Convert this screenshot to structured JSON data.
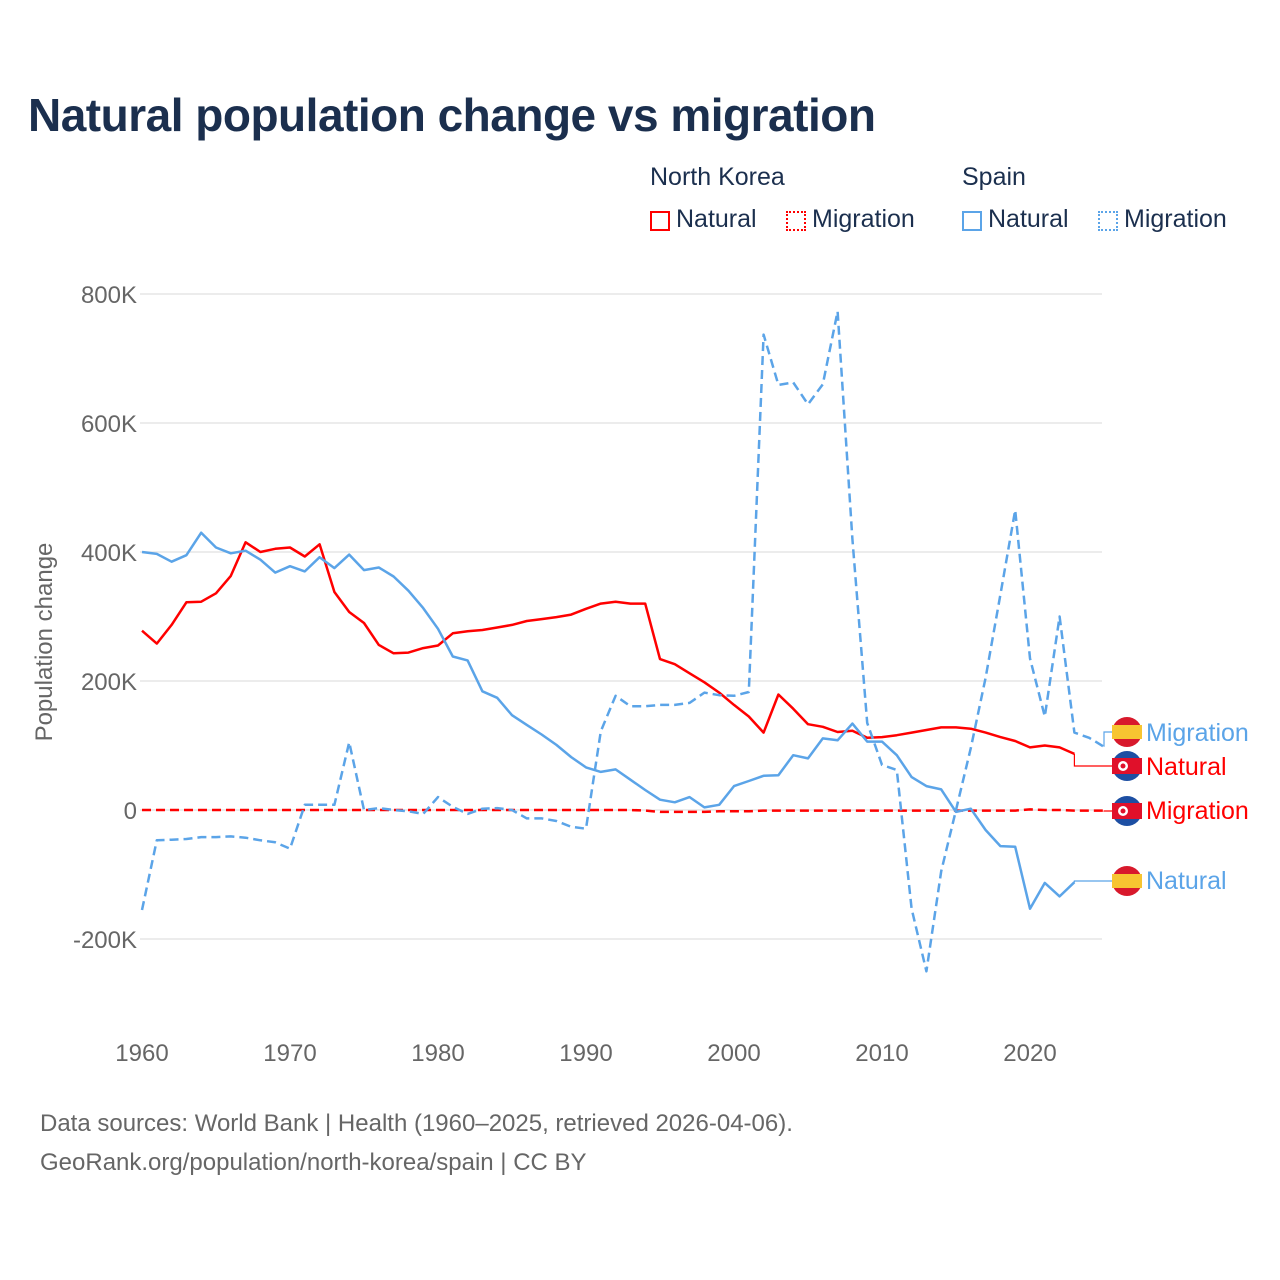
{
  "chart_data": {
    "type": "line",
    "title": "Natural population change vs migration",
    "ylabel": "Population change",
    "xlabel": "",
    "ylim": [
      -250000,
      800000
    ],
    "xlim": [
      1960,
      2025
    ],
    "yticks": [
      {
        "v": 800000,
        "label": "800K"
      },
      {
        "v": 600000,
        "label": "600K"
      },
      {
        "v": 400000,
        "label": "400K"
      },
      {
        "v": 200000,
        "label": "200K"
      },
      {
        "v": 0,
        "label": "0"
      },
      {
        "v": -200000,
        "label": "-200K"
      }
    ],
    "xticks": [
      {
        "v": 1960,
        "label": "1960"
      },
      {
        "v": 1970,
        "label": "1970"
      },
      {
        "v": 1980,
        "label": "1980"
      },
      {
        "v": 1990,
        "label": "1990"
      },
      {
        "v": 2000,
        "label": "2000"
      },
      {
        "v": 2010,
        "label": "2010"
      },
      {
        "v": 2020,
        "label": "2020"
      }
    ],
    "grid": true,
    "legend": {
      "position": "top-right",
      "groups": [
        {
          "title": "North Korea",
          "items": [
            "Natural",
            "Migration"
          ]
        },
        {
          "title": "Spain",
          "items": [
            "Natural",
            "Migration"
          ]
        }
      ]
    },
    "series": [
      {
        "name": "North Korea Natural",
        "label": "Natural",
        "country": "North Korea",
        "color": "#ff0000",
        "dash": false,
        "start": 1960,
        "values": [
          278,
          258,
          287,
          322,
          323,
          336,
          363,
          415,
          400,
          405,
          407,
          393,
          412,
          338,
          307,
          290,
          256,
          243,
          244,
          251,
          255,
          274,
          277,
          279,
          283,
          287,
          293,
          296,
          299,
          303,
          312,
          320,
          323,
          320,
          320,
          234,
          226,
          212,
          198,
          182,
          163,
          145,
          120,
          179,
          157,
          133,
          129,
          121,
          123,
          112,
          113,
          116,
          120,
          124,
          128,
          128,
          126,
          120,
          113,
          107,
          97,
          100,
          97,
          87
        ]
      },
      {
        "name": "North Korea Migration",
        "label": "Migration",
        "country": "North Korea",
        "color": "#ff0000",
        "dash": true,
        "start": 1960,
        "values": [
          0,
          0,
          0,
          0,
          0,
          0,
          0,
          0,
          0,
          0,
          0,
          0,
          0,
          0,
          0,
          0,
          0,
          0,
          0,
          0,
          0,
          0,
          0,
          0,
          0,
          0,
          0,
          0,
          0,
          0,
          0,
          0,
          0,
          0,
          -1,
          -3,
          -3,
          -3,
          -3,
          -2,
          -2,
          -2,
          -1,
          -1,
          -1,
          -1,
          -1,
          -1,
          -1,
          -1,
          -1,
          -1,
          -1,
          -1,
          -1,
          -1,
          -1,
          -1,
          -1,
          -1,
          1,
          0,
          0,
          -1,
          -1,
          -1
        ]
      },
      {
        "name": "Spain Natural",
        "label": "Natural",
        "country": "Spain",
        "color": "#5ba4e8",
        "dash": false,
        "start": 1960,
        "values": [
          400,
          397,
          385,
          395,
          430,
          407,
          398,
          402,
          388,
          368,
          378,
          370,
          392,
          375,
          396,
          372,
          376,
          362,
          340,
          313,
          281,
          238,
          232,
          184,
          174,
          147,
          132,
          117,
          101,
          82,
          66,
          59,
          63,
          47,
          31,
          16,
          12,
          20,
          4,
          8,
          37,
          45,
          53,
          54,
          85,
          80,
          111,
          108,
          134,
          106,
          106,
          85,
          51,
          37,
          32,
          -3,
          2,
          -31,
          -56,
          -57,
          -153,
          -113,
          -134,
          -112
        ]
      },
      {
        "name": "Spain Migration",
        "label": "Migration",
        "country": "Spain",
        "color": "#5ba4e8",
        "dash": true,
        "start": 1960,
        "values": [
          -155,
          -47,
          -46,
          -45,
          -42,
          -42,
          -41,
          -43,
          -47,
          -50,
          -60,
          8,
          8,
          8,
          105,
          0,
          3,
          0,
          -2,
          -6,
          20,
          5,
          -6,
          2,
          3,
          0,
          -13,
          -13,
          -17,
          -26,
          -29,
          122,
          177,
          161,
          161,
          163,
          163,
          166,
          182,
          178,
          177,
          183,
          737,
          659,
          663,
          629,
          660,
          773,
          420,
          135,
          70,
          62,
          -153,
          -250,
          -95,
          0,
          96,
          205,
          334,
          465,
          235,
          145,
          300,
          120,
          112,
          98
        ]
      }
    ],
    "value_unit": "thousands"
  },
  "legend": {
    "nk": "North Korea",
    "es": "Spain",
    "natural": "Natural",
    "migration": "Migration"
  },
  "end_labels": {
    "es_migration": "Migration",
    "nk_natural": "Natural",
    "nk_migration": "Migration",
    "es_natural": "Natural"
  },
  "footer": {
    "line1": "Data sources: World Bank | Health (1960–2025, retrieved 2026-04-06).",
    "line2": "GeoRank.org/population/north-korea/spain | CC BY"
  },
  "colors": {
    "nk": "#ff0000",
    "es": "#5ba4e8",
    "title": "#1b2f4e"
  }
}
